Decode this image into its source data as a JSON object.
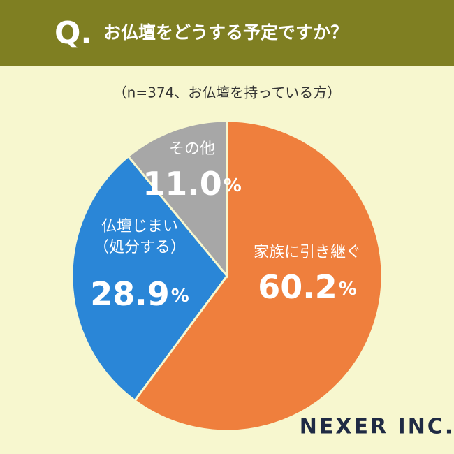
{
  "header": {
    "marker": "Q.",
    "title": "お仏壇をどうする予定ですか？"
  },
  "chart_data": {
    "type": "pie",
    "subtitle": "（n=374、お仏壇を持っている方）",
    "categories": [
      "家族に引き継ぐ",
      "仏壇じまい\n（処分する）",
      "その他"
    ],
    "values": [
      60.2,
      28.9,
      11.0
    ],
    "value_labels": [
      "60.2%",
      "28.9%",
      "11.0%"
    ],
    "colors": [
      "#ef7f3d",
      "#2a86d7",
      "#a7a7a7"
    ]
  },
  "logo": "NEXER INC."
}
